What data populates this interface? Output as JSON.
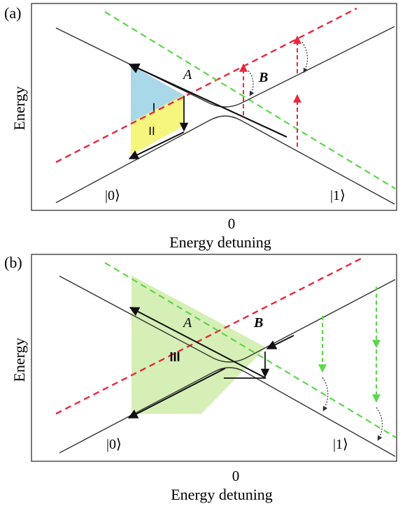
{
  "panels": [
    {
      "label": "(a)",
      "ylabel": "Energy",
      "xlabel": "Energy detuning",
      "x_tick": "0",
      "state_left": "|0⟩",
      "state_right": "|1⟩",
      "label_A": "A",
      "label_B": "B",
      "region_labels": [
        "I",
        "II"
      ]
    },
    {
      "label": "(b)",
      "ylabel": "Energy",
      "xlabel": "Energy detuning",
      "x_tick": "0",
      "state_left": "|0⟩",
      "state_right": "|1⟩",
      "label_A": "A",
      "label_B": "B",
      "region_labels": [
        "III"
      ]
    }
  ],
  "colors": {
    "red_dashed": "#e8283c",
    "green_dashed": "#5cd64a",
    "region_I": "#a9d8e8",
    "region_II": "#f6f57e",
    "region_III": "#d6efb6",
    "arrow_red": "#e8283c",
    "arrow_green": "#5cd64a",
    "axis": "#333333",
    "curve": "#333333"
  }
}
